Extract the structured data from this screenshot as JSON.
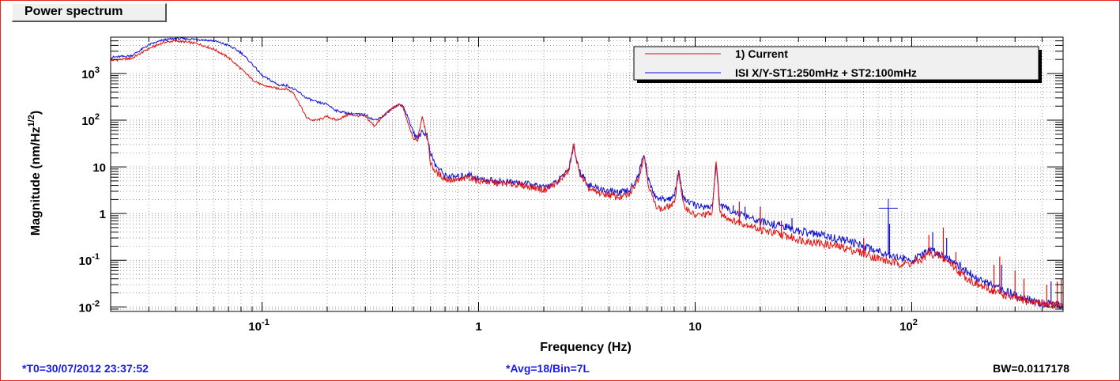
{
  "window": {
    "title": "Power spectrum"
  },
  "footer": {
    "t0": "*T0=30/07/2012 23:37:52",
    "avg": "*Avg=18/Bin=7L",
    "bw": "BW=0.0117178"
  },
  "colors": {
    "frame": "#e8261f",
    "series_current": "#e8100c",
    "series_reference": "#1010d8",
    "footer_text": "#1a1aee"
  },
  "chart_data": {
    "type": "line",
    "x_scale": "log",
    "y_scale": "log",
    "xlim": [
      0.02,
      500
    ],
    "ylim": [
      0.008,
      6000
    ],
    "xlabel": "Frequency (Hz)",
    "ylabel_main": "Magnitude (nm/Hz",
    "ylabel_sup": "1/2",
    "ylabel_tail": ")",
    "grid": true,
    "legend_position": "top-right",
    "x_ticks": [
      {
        "value": 0.1,
        "base": "10",
        "exp": "-1"
      },
      {
        "value": 1,
        "base": "1",
        "exp": ""
      },
      {
        "value": 10,
        "base": "10",
        "exp": ""
      },
      {
        "value": 100,
        "base": "10",
        "exp": "2"
      }
    ],
    "y_ticks": [
      {
        "value": 0.01,
        "base": "10",
        "exp": "-2"
      },
      {
        "value": 0.1,
        "base": "10",
        "exp": "-1"
      },
      {
        "value": 1,
        "base": "1",
        "exp": ""
      },
      {
        "value": 10,
        "base": "10",
        "exp": ""
      },
      {
        "value": 100,
        "base": "10",
        "exp": "2"
      },
      {
        "value": 1000,
        "base": "10",
        "exp": "3"
      }
    ],
    "series": [
      {
        "name": "1) Current",
        "color": "#e8100c",
        "points": [
          [
            0.02,
            1900
          ],
          [
            0.025,
            2100
          ],
          [
            0.03,
            3400
          ],
          [
            0.035,
            4600
          ],
          [
            0.04,
            5000
          ],
          [
            0.05,
            4400
          ],
          [
            0.06,
            3300
          ],
          [
            0.07,
            2200
          ],
          [
            0.08,
            1250
          ],
          [
            0.09,
            750
          ],
          [
            0.1,
            560
          ],
          [
            0.12,
            470
          ],
          [
            0.13,
            470
          ],
          [
            0.14,
            380
          ],
          [
            0.15,
            210
          ],
          [
            0.16,
            115
          ],
          [
            0.17,
            100
          ],
          [
            0.18,
            100
          ],
          [
            0.2,
            120
          ],
          [
            0.22,
            100
          ],
          [
            0.25,
            130
          ],
          [
            0.3,
            120
          ],
          [
            0.33,
            75
          ],
          [
            0.36,
            115
          ],
          [
            0.4,
            180
          ],
          [
            0.43,
            220
          ],
          [
            0.45,
            175
          ],
          [
            0.47,
            90
          ],
          [
            0.5,
            40
          ],
          [
            0.52,
            35
          ],
          [
            0.55,
            130
          ],
          [
            0.58,
            40
          ],
          [
            0.6,
            12
          ],
          [
            0.63,
            8
          ],
          [
            0.7,
            5.5
          ],
          [
            0.8,
            5
          ],
          [
            0.9,
            6
          ],
          [
            1,
            5
          ],
          [
            1.2,
            4.5
          ],
          [
            1.5,
            4.2
          ],
          [
            1.8,
            3.6
          ],
          [
            2.0,
            3.2
          ],
          [
            2.3,
            4.5
          ],
          [
            2.6,
            8
          ],
          [
            2.75,
            30
          ],
          [
            2.9,
            8
          ],
          [
            3.2,
            3.5
          ],
          [
            3.5,
            2.8
          ],
          [
            4,
            2.5
          ],
          [
            4.5,
            2.2
          ],
          [
            5,
            2.6
          ],
          [
            5.5,
            6
          ],
          [
            5.8,
            18
          ],
          [
            6.1,
            4
          ],
          [
            6.5,
            1.6
          ],
          [
            7,
            1.2
          ],
          [
            8,
            1.6
          ],
          [
            8.4,
            8
          ],
          [
            8.8,
            1.5
          ],
          [
            9.5,
            1.1
          ],
          [
            10,
            0.9
          ],
          [
            11,
            0.95
          ],
          [
            12,
            1.0
          ],
          [
            12.5,
            15
          ],
          [
            13,
            1.0
          ],
          [
            15,
            0.7
          ],
          [
            18,
            0.55
          ],
          [
            20,
            0.45
          ],
          [
            25,
            0.35
          ],
          [
            30,
            0.28
          ],
          [
            40,
            0.22
          ],
          [
            50,
            0.18
          ],
          [
            60,
            0.14
          ],
          [
            70,
            0.11
          ],
          [
            80,
            0.09
          ],
          [
            90,
            0.085
          ],
          [
            100,
            0.085
          ],
          [
            110,
            0.1
          ],
          [
            120,
            0.14
          ],
          [
            130,
            0.13
          ],
          [
            150,
            0.09
          ],
          [
            170,
            0.05
          ],
          [
            200,
            0.03
          ],
          [
            250,
            0.02
          ],
          [
            300,
            0.015
          ],
          [
            350,
            0.013
          ],
          [
            400,
            0.012
          ],
          [
            450,
            0.011
          ],
          [
            500,
            0.01
          ]
        ],
        "spikes": [
          [
            16,
            1.8
          ],
          [
            20,
            1.3
          ],
          [
            25,
            0.7
          ],
          [
            60,
            0.3
          ],
          [
            120,
            0.35
          ],
          [
            140,
            0.5
          ],
          [
            160,
            0.15
          ],
          [
            240,
            0.08
          ],
          [
            255,
            0.12
          ],
          [
            300,
            0.06
          ],
          [
            330,
            0.04
          ],
          [
            420,
            0.03
          ],
          [
            470,
            0.035
          ],
          [
            490,
            0.04
          ]
        ]
      },
      {
        "name": "ISI X/Y-ST1:250mHz + ST2:100mHz",
        "color": "#1010d8",
        "points": [
          [
            0.02,
            2200
          ],
          [
            0.025,
            2400
          ],
          [
            0.03,
            4100
          ],
          [
            0.035,
            5200
          ],
          [
            0.04,
            5600
          ],
          [
            0.05,
            5400
          ],
          [
            0.06,
            5000
          ],
          [
            0.07,
            4000
          ],
          [
            0.08,
            2800
          ],
          [
            0.09,
            1600
          ],
          [
            0.1,
            900
          ],
          [
            0.11,
            700
          ],
          [
            0.12,
            560
          ],
          [
            0.13,
            560
          ],
          [
            0.14,
            460
          ],
          [
            0.15,
            380
          ],
          [
            0.16,
            300
          ],
          [
            0.18,
            240
          ],
          [
            0.2,
            220
          ],
          [
            0.22,
            160
          ],
          [
            0.25,
            140
          ],
          [
            0.3,
            130
          ],
          [
            0.33,
            100
          ],
          [
            0.36,
            120
          ],
          [
            0.4,
            180
          ],
          [
            0.43,
            220
          ],
          [
            0.45,
            195
          ],
          [
            0.47,
            120
          ],
          [
            0.5,
            55
          ],
          [
            0.52,
            40
          ],
          [
            0.55,
            60
          ],
          [
            0.58,
            45
          ],
          [
            0.6,
            20
          ],
          [
            0.63,
            11
          ],
          [
            0.7,
            6.5
          ],
          [
            0.8,
            6
          ],
          [
            0.9,
            7
          ],
          [
            1,
            5.5
          ],
          [
            1.2,
            5
          ],
          [
            1.5,
            4.6
          ],
          [
            1.8,
            4
          ],
          [
            2.0,
            3.6
          ],
          [
            2.3,
            4.6
          ],
          [
            2.6,
            9
          ],
          [
            2.75,
            28
          ],
          [
            2.9,
            9
          ],
          [
            3.2,
            4.2
          ],
          [
            3.5,
            3.5
          ],
          [
            4,
            3
          ],
          [
            4.5,
            2.8
          ],
          [
            5,
            3.2
          ],
          [
            5.5,
            7
          ],
          [
            5.8,
            20
          ],
          [
            6.1,
            5
          ],
          [
            6.5,
            2.4
          ],
          [
            7,
            2
          ],
          [
            8,
            2.2
          ],
          [
            8.4,
            9
          ],
          [
            8.8,
            2.1
          ],
          [
            9.5,
            1.7
          ],
          [
            10,
            1.5
          ],
          [
            11,
            1.4
          ],
          [
            12,
            1.4
          ],
          [
            12.5,
            12
          ],
          [
            13,
            1.5
          ],
          [
            15,
            1.1
          ],
          [
            18,
            0.8
          ],
          [
            20,
            0.65
          ],
          [
            25,
            0.55
          ],
          [
            30,
            0.42
          ],
          [
            40,
            0.33
          ],
          [
            50,
            0.26
          ],
          [
            60,
            0.2
          ],
          [
            70,
            0.16
          ],
          [
            80,
            0.13
          ],
          [
            90,
            0.11
          ],
          [
            100,
            0.1
          ],
          [
            110,
            0.12
          ],
          [
            120,
            0.16
          ],
          [
            130,
            0.15
          ],
          [
            150,
            0.11
          ],
          [
            170,
            0.07
          ],
          [
            200,
            0.04
          ],
          [
            250,
            0.025
          ],
          [
            300,
            0.018
          ],
          [
            350,
            0.014
          ],
          [
            400,
            0.012
          ],
          [
            450,
            0.011
          ],
          [
            500,
            0.011
          ]
        ],
        "spikes": [
          [
            15,
            1.5
          ],
          [
            17,
            1.4
          ],
          [
            20,
            1.4
          ],
          [
            28,
            0.8
          ],
          [
            78,
            1.3
          ],
          [
            79,
            0.6
          ],
          [
            125,
            0.4
          ],
          [
            145,
            0.3
          ],
          [
            260,
            0.08
          ],
          [
            440,
            0.035
          ]
        ],
        "marker": {
          "x": 78,
          "y": 1.3
        }
      }
    ]
  }
}
